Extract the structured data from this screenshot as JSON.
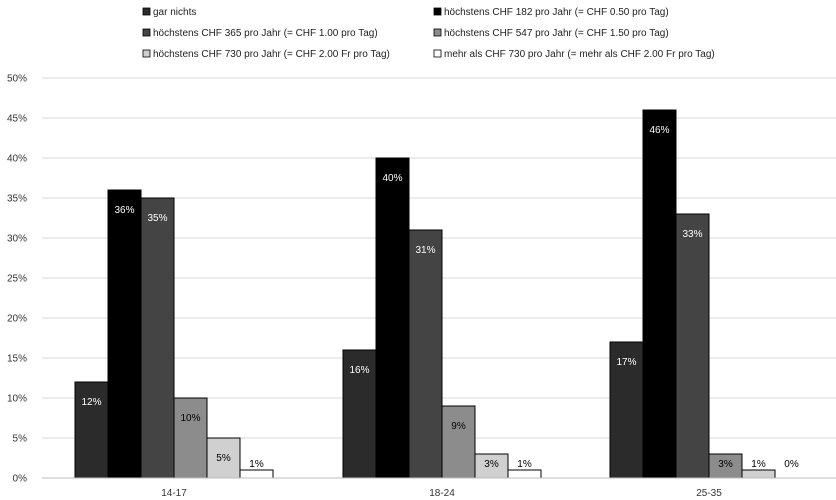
{
  "chart_data": {
    "type": "bar",
    "categories": [
      "14-17",
      "18-24",
      "25-35"
    ],
    "ylim": [
      0,
      50
    ],
    "yticks": [
      "0%",
      "5%",
      "10%",
      "15%",
      "20%",
      "25%",
      "30%",
      "35%",
      "40%",
      "45%",
      "50%"
    ],
    "grid": true,
    "legend_position": "top",
    "series": [
      {
        "name": "gar nichts",
        "values": [
          12,
          16,
          17
        ],
        "labels": [
          "12%",
          "16%",
          "17%"
        ],
        "color": "#2b2b2b",
        "label_color": "#ffffff"
      },
      {
        "name": "höchstens CHF 182 pro Jahr (= CHF 0.50 pro Tag)",
        "values": [
          36,
          40,
          46
        ],
        "labels": [
          "36%",
          "40%",
          "46%"
        ],
        "color": "#000000",
        "label_color": "#ffffff"
      },
      {
        "name": "höchstens CHF 365 pro Jahr (= CHF 1.00 pro Tag)",
        "values": [
          35,
          31,
          33
        ],
        "labels": [
          "35%",
          "31%",
          "33%"
        ],
        "color": "#444444",
        "label_color": "#ffffff"
      },
      {
        "name": "höchstens CHF 547 pro Jahr (= CHF 1.50 pro Tag)",
        "values": [
          10,
          9,
          3
        ],
        "labels": [
          "10%",
          "9%",
          "3%"
        ],
        "color": "#8c8c8c",
        "label_color": "#000000"
      },
      {
        "name": "höchstens CHF 730 pro Jahr (= CHF 2.00 Fr pro Tag)",
        "values": [
          5,
          3,
          1
        ],
        "labels": [
          "5%",
          "3%",
          "1%"
        ],
        "color": "#d0d0d0",
        "label_color": "#000000"
      },
      {
        "name": "mehr als CHF 730 pro Jahr (= mehr als CHF 2.00 Fr pro Tag)",
        "values": [
          1,
          1,
          0
        ],
        "labels": [
          "1%",
          "1%",
          "0%"
        ],
        "color": "#ffffff",
        "label_color": "#000000"
      }
    ]
  }
}
